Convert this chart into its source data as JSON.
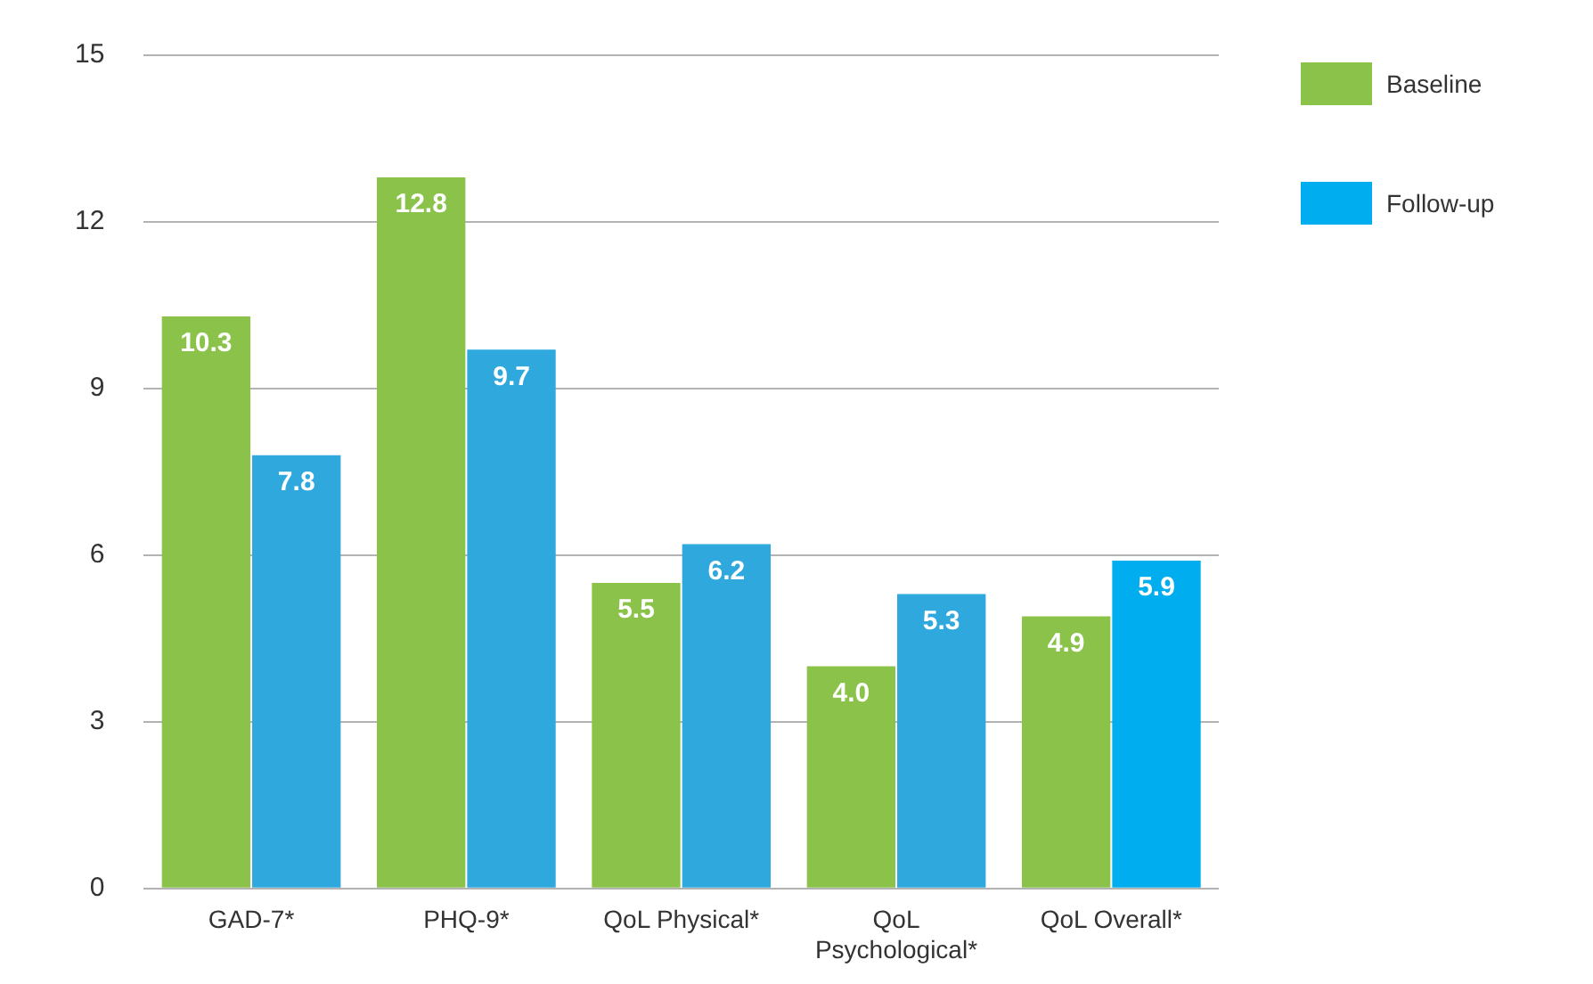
{
  "chart_data": {
    "type": "bar",
    "categories": [
      "GAD-7*",
      "PHQ-9*",
      "QoL Physical*",
      "QoL Psychological*",
      "QoL Overall*"
    ],
    "series": [
      {
        "name": "Baseline",
        "color": "#8bc34a",
        "values": [
          10.3,
          12.8,
          5.5,
          4.0,
          4.9
        ],
        "value_labels": [
          "10.3",
          "12.8",
          "5.5",
          "4.0",
          "4.9"
        ]
      },
      {
        "name": "Follow-up",
        "color": "#00aeef",
        "colors": [
          "#2fa8de",
          "#2fa8de",
          "#2fa8de",
          "#2fa8de",
          "#00aeef"
        ],
        "values": [
          7.8,
          9.7,
          6.2,
          5.3,
          5.9
        ],
        "value_labels": [
          "7.8",
          "9.7",
          "6.2",
          "5.3",
          "5.9"
        ]
      }
    ],
    "ylim": [
      0,
      15
    ],
    "yticks": [
      0,
      3,
      6,
      9,
      12,
      15
    ],
    "grid": "y",
    "legend": "top right"
  }
}
